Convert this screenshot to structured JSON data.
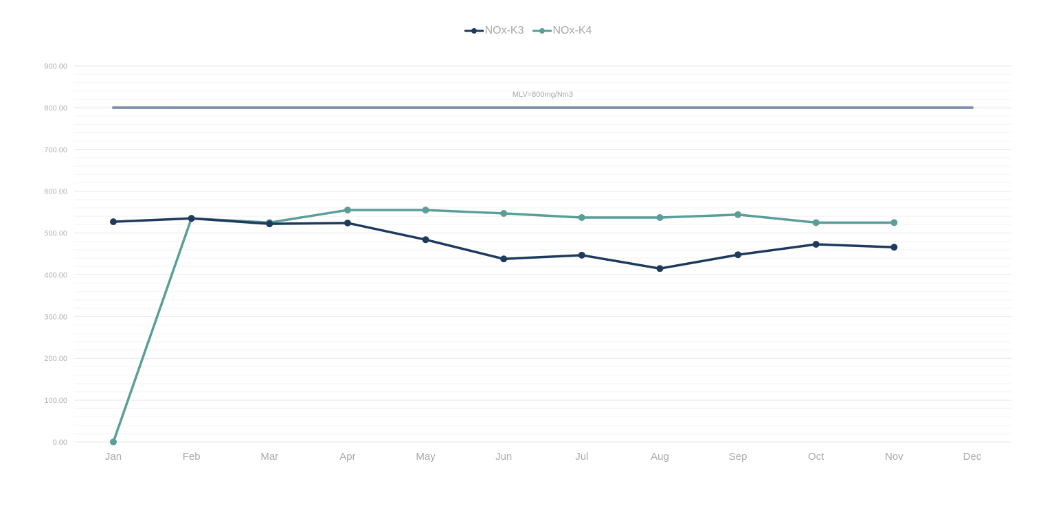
{
  "chart_data": {
    "type": "line",
    "title": "",
    "xlabel": "",
    "ylabel": "",
    "categories": [
      "Jan",
      "Feb",
      "Mar",
      "Apr",
      "May",
      "Jun",
      "Jul",
      "Aug",
      "Sep",
      "Oct",
      "Nov",
      "Dec"
    ],
    "ylim": [
      0,
      900
    ],
    "y_major_step": 100,
    "y_minor_step": 20,
    "y_tick_labels": [
      "0.00",
      "100.00",
      "200.00",
      "300.00",
      "400.00",
      "500.00",
      "600.00",
      "700.00",
      "800.00",
      "900.00"
    ],
    "grid": true,
    "legend_position": "top-center",
    "series": [
      {
        "name": "NOx-K3",
        "color": "#1e3a5c",
        "values": [
          527,
          535,
          522,
          524,
          484,
          438,
          447,
          415,
          448,
          473,
          466,
          null
        ]
      },
      {
        "name": "NOx-K4",
        "color": "#5a9e98",
        "values": [
          0,
          535,
          525,
          555,
          555,
          547,
          537,
          537,
          544,
          525,
          525,
          null
        ]
      }
    ],
    "reference_line": {
      "label": "MLV=800mg/Nm3",
      "value": 800,
      "color": "#7f8fae"
    }
  }
}
